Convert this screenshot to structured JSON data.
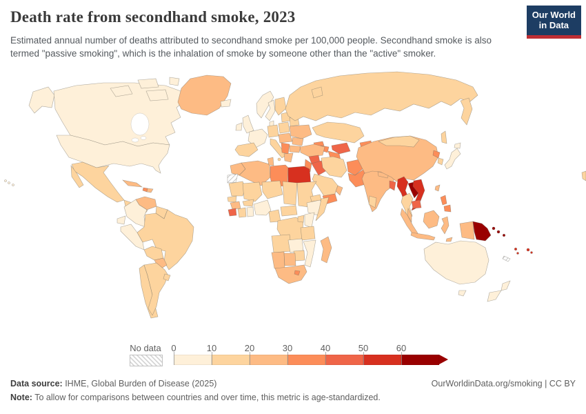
{
  "header": {
    "title": "Death rate from secondhand smoke, 2023",
    "subtitle": "Estimated annual number of deaths attributed to secondhand smoke per 100,000 people. Secondhand smoke is also termed \"passive smoking\", which is the inhalation of smoke by someone other than the \"active\" smoker.",
    "logo": {
      "line1": "Our World",
      "line2": "in Data",
      "bg_color": "#1d3d63",
      "accent_color": "#bf2e34"
    }
  },
  "legend": {
    "no_data_label": "No data",
    "tick_labels": [
      "0",
      "10",
      "20",
      "30",
      "40",
      "50",
      "60"
    ]
  },
  "footer": {
    "data_source_label": "Data source:",
    "data_source_text": " IHME, Global Burden of Disease (2025)",
    "note_label": "Note:",
    "note_text": " To allow for comparisons between countries and over time, this metric is age-standardized.",
    "attribution": "OurWorldinData.org/smoking | CC BY"
  },
  "chart_data": {
    "type": "heatmap",
    "subtype": "world-choropleth",
    "title": "Death rate from secondhand smoke, 2023",
    "unit": "deaths per 100,000 people (age-standardized)",
    "legend_position": "bottom",
    "legend_bins": [
      {
        "range": "0-10",
        "color": "#fef0d9"
      },
      {
        "range": "10-20",
        "color": "#fdd49e"
      },
      {
        "range": "20-30",
        "color": "#fdbb84"
      },
      {
        "range": "30-40",
        "color": "#fc8d59"
      },
      {
        "range": "40-50",
        "color": "#ef6548"
      },
      {
        "range": "50-60",
        "color": "#d7301f"
      },
      {
        "range": "60+",
        "color": "#990000"
      }
    ],
    "regions": [
      {
        "id": "canada",
        "name": "Canada",
        "bin": 0
      },
      {
        "id": "alaska",
        "name": "United States (Alaska)",
        "bin": 0
      },
      {
        "id": "arctic-islands",
        "name": "Canada (Arctic islands)",
        "bin": 0
      },
      {
        "id": "hawaii",
        "name": "United States (Hawaii)",
        "bin": 0
      },
      {
        "id": "usa",
        "name": "United States",
        "bin": 0
      },
      {
        "id": "greenland",
        "name": "Greenland",
        "bin": 2
      },
      {
        "id": "mexico",
        "name": "Mexico",
        "bin": 1
      },
      {
        "id": "central-america",
        "name": "Central America",
        "bin": 1
      },
      {
        "id": "cuba",
        "name": "Cuba",
        "bin": 2
      },
      {
        "id": "haiti",
        "name": "Haiti",
        "bin": 3
      },
      {
        "id": "dominican-republic",
        "name": "Dominican Republic",
        "bin": 2
      },
      {
        "id": "venezuela",
        "name": "Venezuela",
        "bin": 2
      },
      {
        "id": "colombia",
        "name": "Colombia",
        "bin": 0
      },
      {
        "id": "guyanas",
        "name": "Guyana & Suriname",
        "bin": 1
      },
      {
        "id": "ecuador",
        "name": "Ecuador",
        "bin": 0
      },
      {
        "id": "peru",
        "name": "Peru",
        "bin": 0
      },
      {
        "id": "brazil",
        "name": "Brazil",
        "bin": 1
      },
      {
        "id": "bolivia",
        "name": "Bolivia",
        "bin": 1
      },
      {
        "id": "paraguay",
        "name": "Paraguay",
        "bin": 2
      },
      {
        "id": "chile",
        "name": "Chile",
        "bin": 1
      },
      {
        "id": "argentina",
        "name": "Argentina",
        "bin": 1
      },
      {
        "id": "uruguay",
        "name": "Uruguay",
        "bin": 1
      },
      {
        "id": "iceland",
        "name": "Iceland",
        "bin": 0
      },
      {
        "id": "uk",
        "name": "United Kingdom",
        "bin": 0
      },
      {
        "id": "ireland",
        "name": "Ireland",
        "bin": 0
      },
      {
        "id": "norway",
        "name": "Norway",
        "bin": 0
      },
      {
        "id": "svalbard",
        "name": "Svalbard (Norway)",
        "bin": 0
      },
      {
        "id": "sweden",
        "name": "Sweden",
        "bin": 0
      },
      {
        "id": "finland",
        "name": "Finland",
        "bin": 1
      },
      {
        "id": "denmark",
        "name": "Denmark",
        "bin": 0
      },
      {
        "id": "france",
        "name": "France",
        "bin": 0
      },
      {
        "id": "iberia",
        "name": "Spain & Portugal",
        "bin": 1
      },
      {
        "id": "germany",
        "name": "Germany",
        "bin": 1
      },
      {
        "id": "italy",
        "name": "Italy",
        "bin": 1
      },
      {
        "id": "poland",
        "name": "Poland",
        "bin": 1
      },
      {
        "id": "baltics",
        "name": "Baltic states",
        "bin": 1
      },
      {
        "id": "belarus",
        "name": "Belarus",
        "bin": 1
      },
      {
        "id": "ukraine",
        "name": "Ukraine",
        "bin": 2
      },
      {
        "id": "central-europe",
        "name": "Czechia, Austria & Hungary",
        "bin": 2
      },
      {
        "id": "romania",
        "name": "Romania",
        "bin": 2
      },
      {
        "id": "balkans",
        "name": "Serbia & Western Balkans",
        "bin": 3
      },
      {
        "id": "bulgaria",
        "name": "Bulgaria",
        "bin": 2
      },
      {
        "id": "greece",
        "name": "Greece",
        "bin": 2
      },
      {
        "id": "russia",
        "name": "Russia",
        "bin": 1
      },
      {
        "id": "novaya-zemlya",
        "name": "Russia (Novaya Zemlya)",
        "bin": 1
      },
      {
        "id": "sakhalin",
        "name": "Russia (Sakhalin)",
        "bin": 1
      },
      {
        "id": "kazakhstan",
        "name": "Kazakhstan",
        "bin": 1
      },
      {
        "id": "uzbekistan",
        "name": "Uzbekistan",
        "bin": 4
      },
      {
        "id": "turkmenistan",
        "name": "Turkmenistan",
        "bin": 3
      },
      {
        "id": "kyrgyzstan",
        "name": "Kyrgyzstan",
        "bin": 3
      },
      {
        "id": "tajikistan",
        "name": "Tajikistan",
        "bin": 3
      },
      {
        "id": "georgia",
        "name": "Georgia",
        "bin": 3
      },
      {
        "id": "azerbaijan",
        "name": "Azerbaijan",
        "bin": 3
      },
      {
        "id": "armenia",
        "name": "Armenia",
        "bin": 5
      },
      {
        "id": "turkey",
        "name": "Turkey",
        "bin": 2
      },
      {
        "id": "syria",
        "name": "Syria",
        "bin": 4
      },
      {
        "id": "levant",
        "name": "Jordan, Lebanon & Israel",
        "bin": 3
      },
      {
        "id": "iraq",
        "name": "Iraq",
        "bin": 4
      },
      {
        "id": "iran",
        "name": "Iran",
        "bin": 1
      },
      {
        "id": "afghanistan",
        "name": "Afghanistan",
        "bin": 3
      },
      {
        "id": "pakistan",
        "name": "Pakistan",
        "bin": 3
      },
      {
        "id": "saudi-arabia",
        "name": "Saudi Arabia",
        "bin": 1
      },
      {
        "id": "yemen",
        "name": "Yemen",
        "bin": 3
      },
      {
        "id": "oman",
        "name": "Oman",
        "bin": 2
      },
      {
        "id": "india",
        "name": "India",
        "bin": 2
      },
      {
        "id": "nepal",
        "name": "Nepal",
        "bin": 2
      },
      {
        "id": "bangladesh",
        "name": "Bangladesh",
        "bin": 4
      },
      {
        "id": "sri-lanka",
        "name": "Sri Lanka",
        "bin": 1
      },
      {
        "id": "china",
        "name": "China",
        "bin": 2
      },
      {
        "id": "mongolia",
        "name": "Mongolia",
        "bin": 1
      },
      {
        "id": "north-korea",
        "name": "North Korea",
        "bin": 3
      },
      {
        "id": "south-korea",
        "name": "South Korea",
        "bin": 1
      },
      {
        "id": "japan",
        "name": "Japan",
        "bin": 0
      },
      {
        "id": "taiwan",
        "name": "Taiwan",
        "bin": 2
      },
      {
        "id": "myanmar",
        "name": "Myanmar",
        "bin": 5
      },
      {
        "id": "laos",
        "name": "Laos",
        "bin": 6
      },
      {
        "id": "vietnam",
        "name": "Vietnam",
        "bin": 5
      },
      {
        "id": "thailand",
        "name": "Thailand",
        "bin": 1
      },
      {
        "id": "cambodia",
        "name": "Cambodia",
        "bin": 4
      },
      {
        "id": "malaysia",
        "name": "Malaysia (peninsula)",
        "bin": 2
      },
      {
        "id": "sumatra",
        "name": "Indonesia (Sumatra)",
        "bin": 2
      },
      {
        "id": "java",
        "name": "Indonesia (Java)",
        "bin": 2
      },
      {
        "id": "borneo",
        "name": "Borneo",
        "bin": 2
      },
      {
        "id": "sulawesi",
        "name": "Indonesia (Sulawesi)",
        "bin": 2
      },
      {
        "id": "timor",
        "name": "Timor",
        "bin": 2
      },
      {
        "id": "west-papua",
        "name": "Indonesia (Papua)",
        "bin": 2
      },
      {
        "id": "papua-new-guinea",
        "name": "Papua New Guinea",
        "bin": 6
      },
      {
        "id": "solomon-islands",
        "name": "Solomon Islands",
        "bin": 6
      },
      {
        "id": "vanuatu",
        "name": "Vanuatu",
        "bin": 5
      },
      {
        "id": "fiji",
        "name": "Fiji",
        "bin": 5
      },
      {
        "id": "new-caledonia",
        "name": "New Caledonia",
        "bin": null
      },
      {
        "id": "philippines",
        "name": "Philippines",
        "bin": 3
      },
      {
        "id": "morocco",
        "name": "Morocco",
        "bin": 2
      },
      {
        "id": "western-sahara",
        "name": "Western Sahara",
        "bin": null
      },
      {
        "id": "algeria",
        "name": "Algeria",
        "bin": 2
      },
      {
        "id": "tunisia",
        "name": "Tunisia",
        "bin": 2
      },
      {
        "id": "libya",
        "name": "Libya",
        "bin": 3
      },
      {
        "id": "egypt",
        "name": "Egypt",
        "bin": 5
      },
      {
        "id": "mauritania",
        "name": "Mauritania",
        "bin": 1
      },
      {
        "id": "senegal",
        "name": "Senegal",
        "bin": 1
      },
      {
        "id": "guinea",
        "name": "Guinea",
        "bin": 2
      },
      {
        "id": "sierra-leone",
        "name": "Sierra Leone & Liberia",
        "bin": 4
      },
      {
        "id": "ivory-coast",
        "name": "Côte d'Ivoire",
        "bin": 1
      },
      {
        "id": "ghana",
        "name": "Ghana",
        "bin": 0
      },
      {
        "id": "mali",
        "name": "Mali",
        "bin": 1
      },
      {
        "id": "burkina-faso",
        "name": "Burkina Faso",
        "bin": 1
      },
      {
        "id": "niger",
        "name": "Niger",
        "bin": 1
      },
      {
        "id": "nigeria",
        "name": "Nigeria",
        "bin": 0
      },
      {
        "id": "chad",
        "name": "Chad",
        "bin": 1
      },
      {
        "id": "sudan",
        "name": "Sudan",
        "bin": 1
      },
      {
        "id": "eritrea",
        "name": "Eritrea",
        "bin": 1
      },
      {
        "id": "ethiopia",
        "name": "Ethiopia",
        "bin": 0
      },
      {
        "id": "somalia",
        "name": "Somalia",
        "bin": 1
      },
      {
        "id": "cameroon",
        "name": "Cameroon",
        "bin": 1
      },
      {
        "id": "car",
        "name": "Central African Republic",
        "bin": 1
      },
      {
        "id": "drc",
        "name": "DR Congo",
        "bin": 1
      },
      {
        "id": "uganda",
        "name": "Uganda",
        "bin": 1
      },
      {
        "id": "kenya",
        "name": "Kenya",
        "bin": 0
      },
      {
        "id": "tanzania",
        "name": "Tanzania",
        "bin": 1
      },
      {
        "id": "angola",
        "name": "Angola",
        "bin": 1
      },
      {
        "id": "zambia",
        "name": "Zambia",
        "bin": 0
      },
      {
        "id": "mozambique",
        "name": "Mozambique",
        "bin": 0
      },
      {
        "id": "zimbabwe",
        "name": "Zimbabwe",
        "bin": 1
      },
      {
        "id": "namibia",
        "name": "Namibia",
        "bin": 2
      },
      {
        "id": "botswana",
        "name": "Botswana",
        "bin": 2
      },
      {
        "id": "south-africa",
        "name": "South Africa",
        "bin": 2
      },
      {
        "id": "lesotho",
        "name": "Lesotho",
        "bin": 3
      },
      {
        "id": "madagascar",
        "name": "Madagascar",
        "bin": 2
      },
      {
        "id": "australia",
        "name": "Australia",
        "bin": 0
      },
      {
        "id": "new-zealand",
        "name": "New Zealand",
        "bin": 0
      }
    ]
  }
}
